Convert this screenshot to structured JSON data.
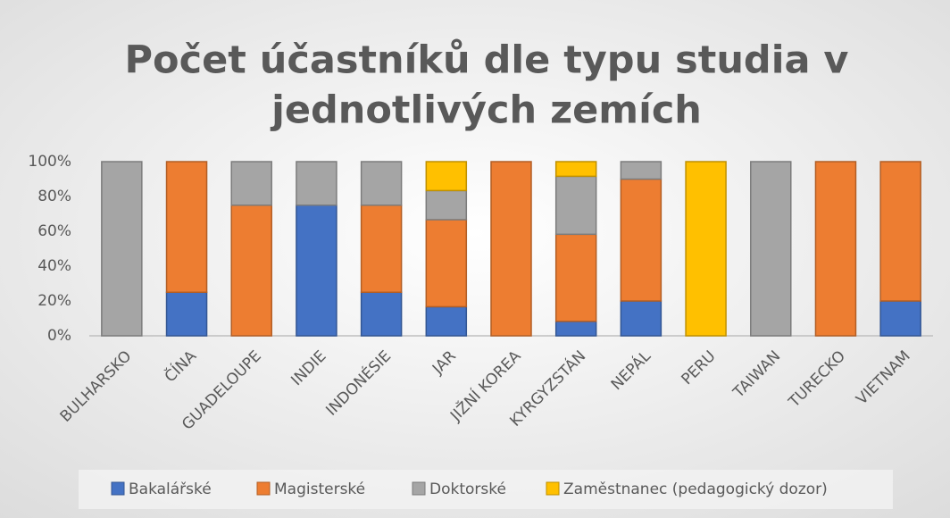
{
  "chart_data": {
    "type": "stacked_bar",
    "title": [
      "Počet účastníků dle typu studia v",
      "jednotlivých zemích"
    ],
    "categories": [
      "BULHARSKO",
      "ČÍNA",
      "GUADELOUPE",
      "INDIE",
      "INDONÉSIE",
      "JAR",
      "JIŽNÍ KOREA",
      "KYRGYZSTÁN",
      "NEPÁL",
      "PERU",
      "TAIWAN",
      "TURECKO",
      "VIETNAM"
    ],
    "series": [
      {
        "name": "Bakalářské",
        "color": "#4472c4",
        "values": [
          0,
          25,
          0,
          75,
          25,
          16.7,
          0,
          8.3,
          20,
          0,
          0,
          0,
          20
        ]
      },
      {
        "name": "Magisterské",
        "color": "#ed7d31",
        "values": [
          0,
          75,
          75,
          0,
          50,
          50,
          100,
          50,
          70,
          0,
          0,
          100,
          80
        ]
      },
      {
        "name": "Doktorské",
        "color": "#a5a5a5",
        "values": [
          100,
          0,
          25,
          25,
          25,
          16.7,
          0,
          33.3,
          10,
          0,
          100,
          0,
          0
        ]
      },
      {
        "name": "Zaměstnanec (pedagogický dozor)",
        "color": "#ffc000",
        "values": [
          0,
          0,
          0,
          0,
          0,
          16.6,
          0,
          8.4,
          0,
          100,
          0,
          0,
          0
        ]
      }
    ],
    "ylim": [
      0,
      100
    ],
    "yticks": [
      {
        "value": 0,
        "label": "0%"
      },
      {
        "value": 20,
        "label": "20%"
      },
      {
        "value": 40,
        "label": "40%"
      },
      {
        "value": 60,
        "label": "60%"
      },
      {
        "value": 80,
        "label": "80%"
      },
      {
        "value": 100,
        "label": "100%"
      }
    ],
    "grid": false,
    "legend": "bottom"
  }
}
